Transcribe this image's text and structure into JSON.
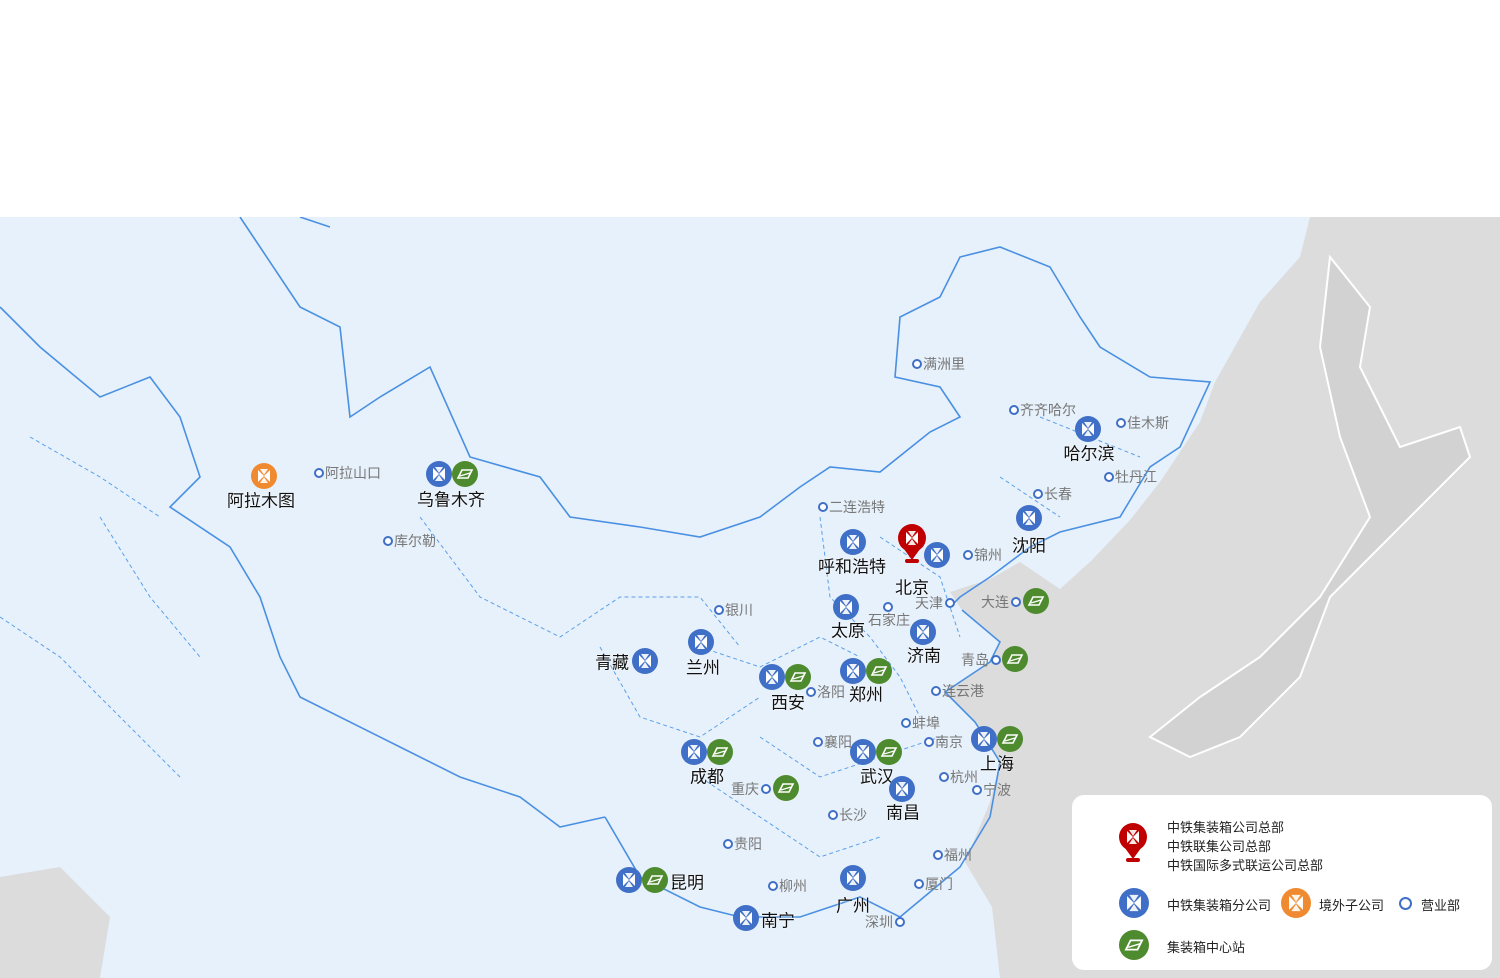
{
  "colors": {
    "land": "#e7f1fb",
    "sea": "#dcdcdc",
    "border": "#4a90e2",
    "branch": "#3f6fc6",
    "center": "#4e8a2e",
    "overseas": "#f08a30",
    "hq": "#c00000"
  },
  "cities": [
    {
      "name": "阿拉木图",
      "icons": [
        "overseas"
      ]
    },
    {
      "name": "乌鲁木齐",
      "icons": [
        "branch",
        "center"
      ]
    },
    {
      "name": "呼和浩特",
      "icons": [
        "branch"
      ]
    },
    {
      "name": "北京",
      "icons": [
        "hq",
        "branch"
      ]
    },
    {
      "name": "沈阳",
      "icons": [
        "branch"
      ]
    },
    {
      "name": "哈尔滨",
      "icons": [
        "branch"
      ]
    },
    {
      "name": "太原",
      "icons": [
        "branch"
      ]
    },
    {
      "name": "济南",
      "icons": [
        "branch"
      ]
    },
    {
      "name": "兰州",
      "icons": [
        "branch"
      ]
    },
    {
      "name": "青藏",
      "icons": [
        "branch"
      ]
    },
    {
      "name": "西安",
      "icons": [
        "branch",
        "center"
      ]
    },
    {
      "name": "郑州",
      "icons": [
        "branch",
        "center"
      ]
    },
    {
      "name": "成都",
      "icons": [
        "branch",
        "center"
      ]
    },
    {
      "name": "武汉",
      "icons": [
        "branch",
        "center"
      ]
    },
    {
      "name": "上海",
      "icons": [
        "branch",
        "center"
      ]
    },
    {
      "name": "南昌",
      "icons": [
        "branch"
      ]
    },
    {
      "name": "昆明",
      "icons": [
        "branch",
        "center"
      ]
    },
    {
      "name": "南宁",
      "icons": [
        "branch"
      ]
    },
    {
      "name": "广州",
      "icons": [
        "branch"
      ]
    }
  ],
  "offices": [
    "满洲里",
    "齐齐哈尔",
    "佳木斯",
    "牡丹江",
    "长春",
    "二连浩特",
    "锦州",
    "天津",
    "阿拉山口",
    "库尔勒",
    "银川",
    "石家庄",
    "洛阳",
    "连云港",
    "蚌埠",
    "襄阳",
    "南京",
    "杭州",
    "宁波",
    "长沙",
    "贵阳",
    "福州",
    "厦门",
    "柳州",
    "深圳",
    "大连",
    "青岛",
    "重庆"
  ],
  "office_centers": [
    "大连",
    "青岛",
    "重庆"
  ],
  "legend": {
    "hq_lines": [
      "中铁集装箱公司总部",
      "中铁联集公司总部",
      "中铁国际多式联运公司总部"
    ],
    "branch": "中铁集装箱分公司",
    "overseas": "境外子公司",
    "office": "营业部",
    "center": "集装箱中心站"
  }
}
